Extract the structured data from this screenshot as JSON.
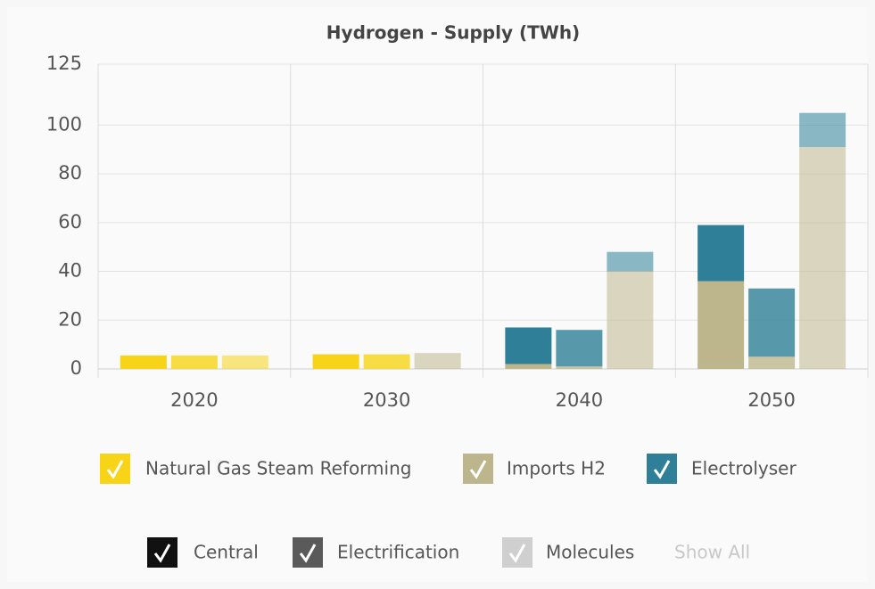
{
  "chart_data": {
    "type": "grouped-stacked-bar",
    "title": "Hydrogen - Supply (TWh)",
    "categories": [
      "2020",
      "2030",
      "2040",
      "2050"
    ],
    "scenarios": [
      {
        "name": "Central",
        "color": "#111111",
        "opacity": 1
      },
      {
        "name": "Electrification",
        "color": "#5a5a5a",
        "opacity": 0.8
      },
      {
        "name": "Molecules",
        "color": "#cfcfcf",
        "opacity": 0.55
      }
    ],
    "series": [
      {
        "name": "Natural Gas Steam Reforming",
        "color": "#f7d417",
        "values": [
          [
            5.5,
            5.5,
            5.5
          ],
          [
            6,
            6,
            0
          ],
          [
            0,
            0,
            0
          ],
          [
            0,
            0,
            0
          ]
        ]
      },
      {
        "name": "Imports H2",
        "color": "#bdb68c",
        "values": [
          [
            0,
            0,
            0
          ],
          [
            0,
            0,
            6.5
          ],
          [
            2,
            1,
            40
          ],
          [
            36,
            5,
            91
          ]
        ]
      },
      {
        "name": "Electrolyser",
        "color": "#2e7f97",
        "values": [
          [
            0,
            0,
            0
          ],
          [
            0,
            0,
            0
          ],
          [
            15,
            15,
            8
          ],
          [
            23,
            28,
            14
          ]
        ]
      }
    ],
    "reset_label": "Show All",
    "ylim": [
      0,
      125
    ],
    "yticks": [
      0,
      20,
      40,
      60,
      80,
      100,
      125
    ],
    "grid": true
  }
}
